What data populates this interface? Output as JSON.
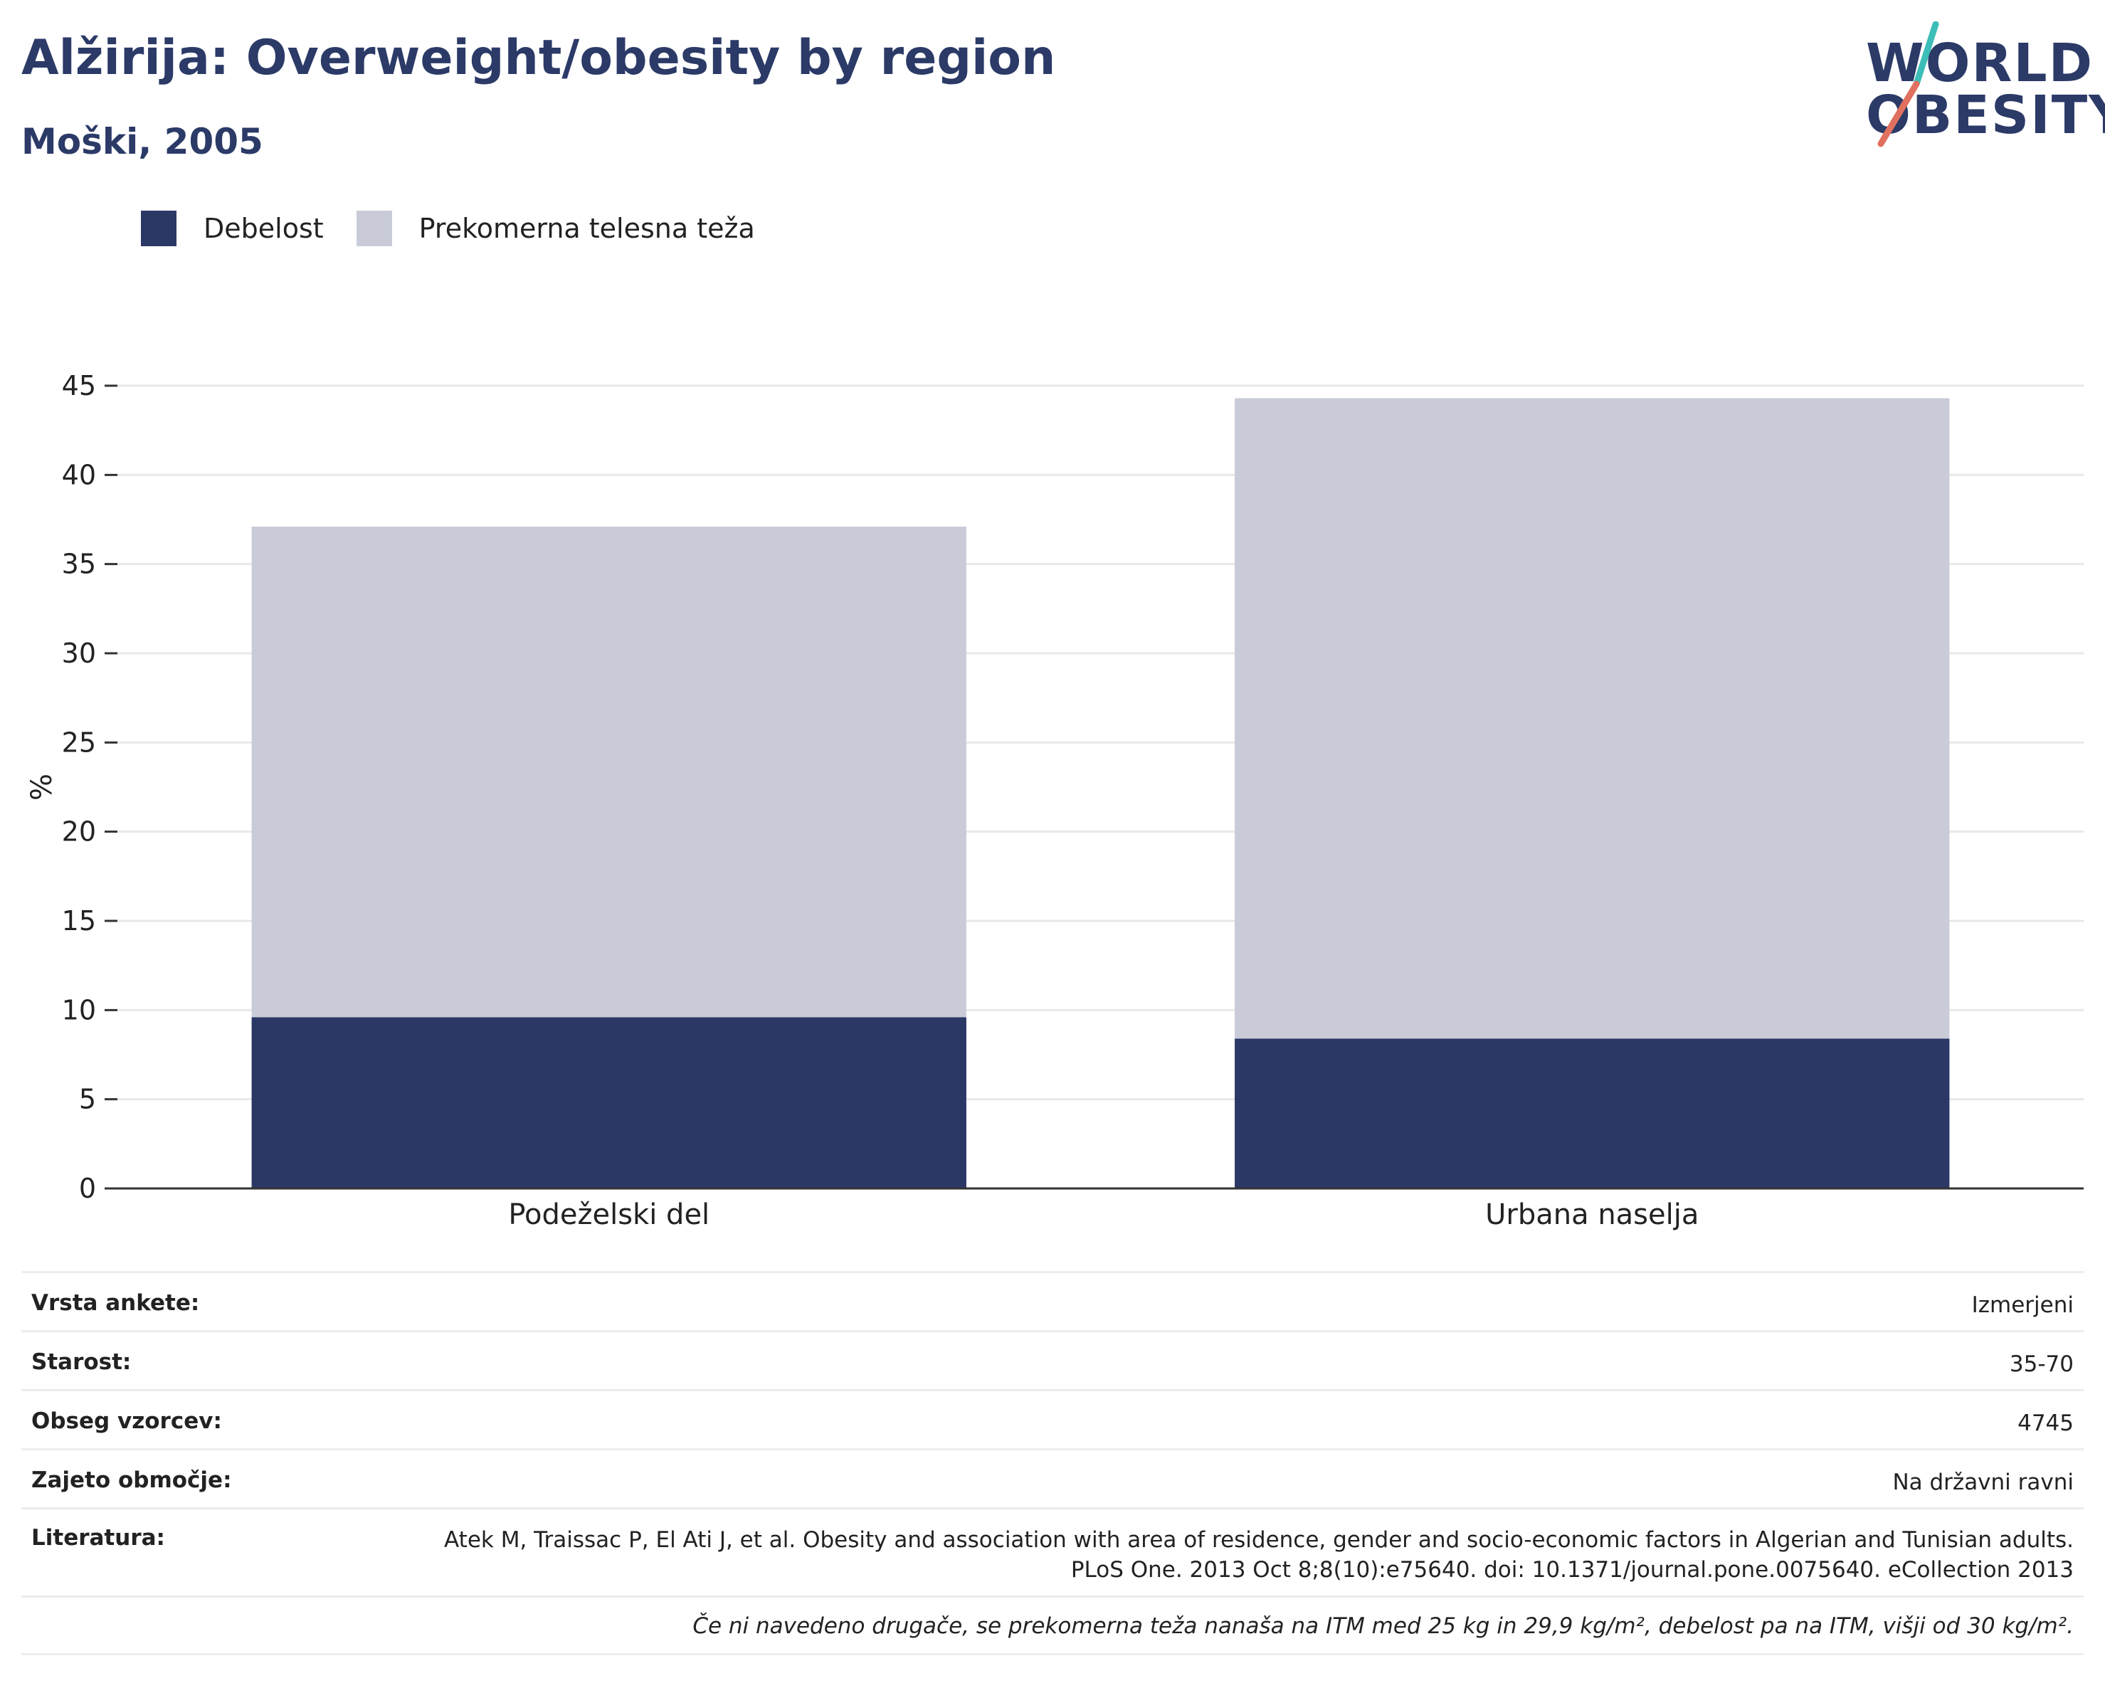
{
  "header": {
    "title": "Alžirija: Overweight/obesity by region",
    "subtitle": "Moški, 2005"
  },
  "logo": {
    "line1": "WORLD",
    "line2": "OBESITY",
    "colors": {
      "text": "#2b3a67",
      "slash_top": "#3dbdb8",
      "slash_bottom": "#e0705f"
    }
  },
  "legend": {
    "items": [
      {
        "label": "Debelost",
        "color": "#2b3866"
      },
      {
        "label": "Prekomerna telesna teža",
        "color": "#c9ccd8"
      }
    ]
  },
  "chart_data": {
    "type": "bar",
    "stacked": true,
    "categories": [
      "Podeželski del",
      "Urbana naselja"
    ],
    "series": [
      {
        "name": "Debelost",
        "values": [
          9.6,
          8.4
        ],
        "color": "#2b3866"
      },
      {
        "name": "Prekomerna telesna teža",
        "values": [
          27.5,
          35.9
        ],
        "color": "#c9ccd8"
      }
    ],
    "ylabel": "%",
    "ylim": [
      0,
      45
    ],
    "yticks": [
      0,
      5,
      10,
      15,
      20,
      25,
      30,
      35,
      40,
      45
    ],
    "grid": true,
    "legend_position": "top-left"
  },
  "info": {
    "survey_type": {
      "label": "Vrsta ankete:",
      "value": "Izmerjeni"
    },
    "age": {
      "label": "Starost:",
      "value": "35-70"
    },
    "sample_size": {
      "label": "Obseg vzorcev:",
      "value": "4745"
    },
    "area_covered": {
      "label": "Zajeto območje:",
      "value": "Na državni ravni"
    },
    "reference": {
      "label": "Literatura:",
      "value": "Atek M, Traissac P, El Ati J, et al. Obesity and association with area of residence, gender and socio-economic factors in Algerian and Tunisian adults. PLoS One. 2013 Oct 8;8(10):e75640. doi: 10.1371/journal.pone.0075640. eCollection 2013"
    },
    "note": "Če ni navedeno drugače, se prekomerna teža nanaša na ITM med 25 kg in 29,9 kg/m², debelost pa na ITM, višji od 30 kg/m²."
  }
}
